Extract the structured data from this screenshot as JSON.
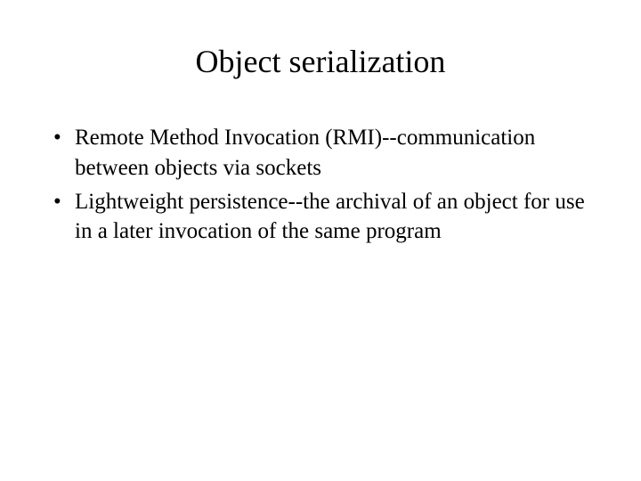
{
  "slide": {
    "title": "Object serialization",
    "bullets": [
      {
        "marker": "•",
        "text": "Remote Method Invocation (RMI)--communication between objects via sockets"
      },
      {
        "marker": "•",
        "text": "Lightweight persistence--the archival of an object for use in a later invocation of the same program"
      }
    ]
  },
  "colors": {
    "background": "#ffffff",
    "text": "#000000"
  },
  "typography": {
    "font_family": "Times New Roman",
    "title_fontsize": 36,
    "body_fontsize": 25
  }
}
